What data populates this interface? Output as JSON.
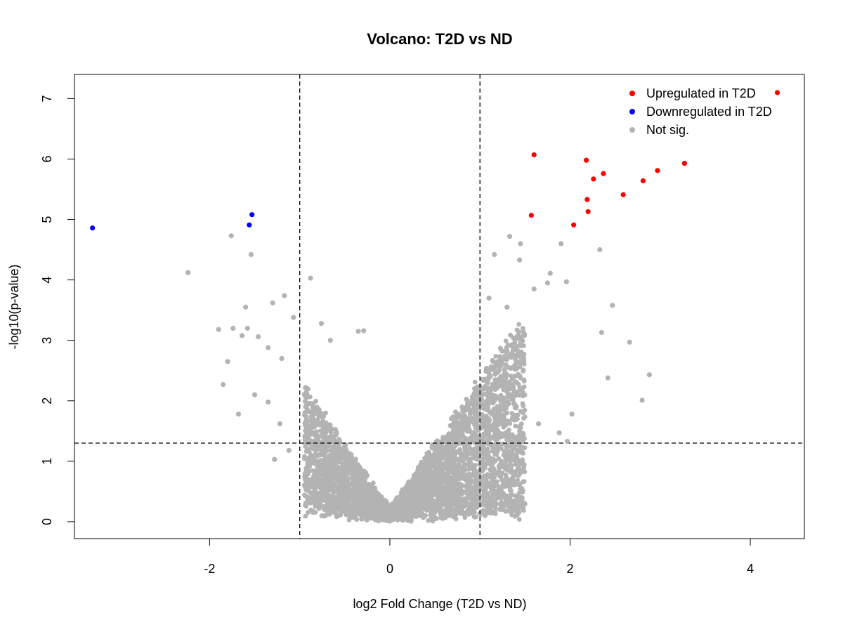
{
  "chart_data": {
    "type": "scatter",
    "title": "Volcano: T2D vs ND",
    "xlabel": "log2 Fold Change (T2D vs ND)",
    "ylabel": "-log10(p-value)",
    "xlim": [
      -3.5,
      4.6
    ],
    "ylim": [
      -0.28,
      7.4
    ],
    "x_ticks": [
      -2,
      0,
      2,
      4
    ],
    "y_ticks": [
      0,
      1,
      2,
      3,
      4,
      5,
      6,
      7
    ],
    "thresholds": {
      "x": [
        -1,
        1
      ],
      "y": 1.3
    },
    "grid": false,
    "legend_position": "top-right",
    "series": [
      {
        "name": "Upregulated in T2D",
        "color": "#ff0000",
        "points": [
          [
            4.3,
            7.1
          ],
          [
            1.6,
            6.07
          ],
          [
            2.18,
            5.98
          ],
          [
            3.27,
            5.93
          ],
          [
            2.97,
            5.81
          ],
          [
            2.37,
            5.76
          ],
          [
            2.26,
            5.67
          ],
          [
            2.81,
            5.64
          ],
          [
            2.59,
            5.41
          ],
          [
            2.19,
            5.33
          ],
          [
            2.2,
            5.13
          ],
          [
            1.57,
            5.07
          ],
          [
            2.04,
            4.91
          ]
        ]
      },
      {
        "name": "Downregulated in T2D",
        "color": "#0000ff",
        "points": [
          [
            -3.3,
            4.86
          ],
          [
            -1.53,
            5.08
          ],
          [
            -1.56,
            4.91
          ]
        ]
      },
      {
        "name": "Not sig.",
        "color": "#b3b3b3",
        "description": "dense cloud of non-significant genes (representative sample)",
        "points": [
          [
            -1.76,
            4.73
          ],
          [
            -2.24,
            4.12
          ],
          [
            -1.54,
            4.42
          ],
          [
            -0.88,
            4.03
          ],
          [
            -1.17,
            3.74
          ],
          [
            -1.3,
            3.62
          ],
          [
            -1.6,
            3.55
          ],
          [
            -1.9,
            3.18
          ],
          [
            -1.74,
            3.2
          ],
          [
            -1.58,
            3.2
          ],
          [
            -1.64,
            3.08
          ],
          [
            -1.46,
            3.06
          ],
          [
            -1.07,
            3.38
          ],
          [
            -1.8,
            2.65
          ],
          [
            -1.85,
            2.27
          ],
          [
            -1.68,
            1.78
          ],
          [
            -1.5,
            2.1
          ],
          [
            -1.35,
            1.98
          ],
          [
            -1.22,
            1.62
          ],
          [
            -1.28,
            1.03
          ],
          [
            -1.12,
            1.18
          ],
          [
            -1.35,
            2.88
          ],
          [
            -1.2,
            2.7
          ],
          [
            -0.35,
            3.15
          ],
          [
            -0.29,
            3.16
          ],
          [
            -0.76,
            3.28
          ],
          [
            -0.66,
            3.0
          ],
          [
            1.33,
            4.72
          ],
          [
            1.45,
            4.6
          ],
          [
            1.9,
            4.6
          ],
          [
            2.33,
            4.5
          ],
          [
            1.16,
            4.42
          ],
          [
            1.44,
            4.33
          ],
          [
            1.78,
            4.11
          ],
          [
            1.96,
            3.97
          ],
          [
            1.75,
            3.95
          ],
          [
            2.47,
            3.58
          ],
          [
            2.35,
            3.13
          ],
          [
            2.66,
            2.97
          ],
          [
            2.88,
            2.43
          ],
          [
            2.8,
            2.01
          ],
          [
            2.42,
            2.38
          ],
          [
            2.02,
            1.78
          ],
          [
            1.65,
            1.62
          ],
          [
            1.88,
            1.47
          ],
          [
            1.97,
            1.33
          ],
          [
            1.1,
            3.7
          ],
          [
            1.3,
            3.55
          ],
          [
            1.6,
            3.85
          ]
        ]
      }
    ]
  }
}
